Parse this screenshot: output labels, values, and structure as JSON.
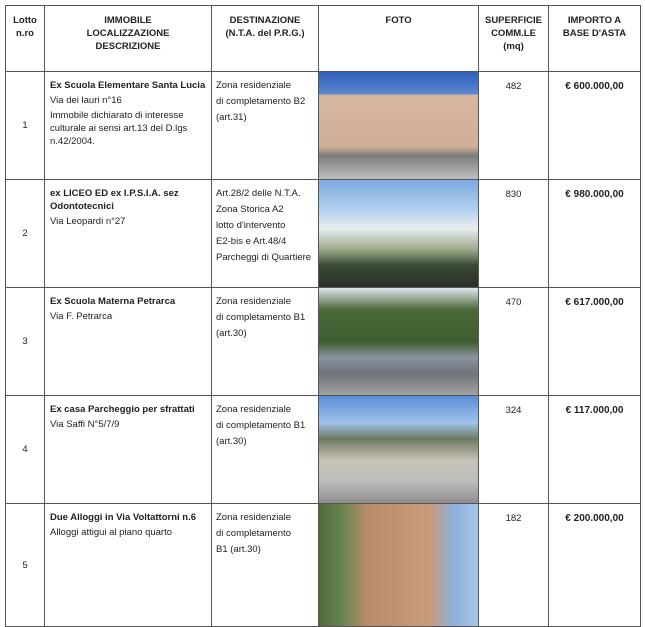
{
  "headers": {
    "lotto": [
      "Lotto",
      "n.ro"
    ],
    "immobile": [
      "IMMOBILE",
      "LOCALIZZAZIONE",
      "DESCRIZIONE"
    ],
    "destinazione": [
      "DESTINAZIONE",
      "(N.T.A. del P.R.G.)"
    ],
    "foto": "FOTO",
    "superficie": [
      "SUPERFICIE",
      "COMM.LE",
      "(mq)"
    ],
    "importo": [
      "IMPORTO A",
      "BASE D'ASTA"
    ]
  },
  "rows": [
    {
      "lotto": "1",
      "name": "Ex Scuola Elementare Santa Lucia",
      "details": [
        "Via dei lauri n°16",
        "Immobile dichiarato di interesse culturale ai sensi art.13 del D.lgs n.42/2004."
      ],
      "destinazione": [
        "Zona residenziale",
        "di completamento B2",
        "(art.31)"
      ],
      "superficie": "482",
      "importo": "€ 600.000,00"
    },
    {
      "lotto": "2",
      "name": "ex LICEO ED ex I.P.S.I.A. sez Odontotecnici",
      "details": [
        "Via Leopardi n°27"
      ],
      "destinazione": [
        "Art.28/2 delle N.T.A.",
        "Zona Storica A2",
        "lotto d'intervento",
        "E2-bis e Art.48/4",
        "Parcheggi di Quartiere"
      ],
      "superficie": "830",
      "importo": "€ 980.000,00"
    },
    {
      "lotto": "3",
      "name": "Ex Scuola Materna Petrarca",
      "details": [
        "Via F. Petrarca"
      ],
      "destinazione": [
        "Zona residenziale",
        "di completamento B1",
        "(art.30)"
      ],
      "superficie": "470",
      "importo": "€ 617.000,00"
    },
    {
      "lotto": "4",
      "name": "Ex casa Parcheggio per sfrattati",
      "details": [
        "Via Saffi N°5/7/9"
      ],
      "destinazione": [
        "Zona residenziale",
        "di completamento B1",
        "(art.30)"
      ],
      "superficie": "324",
      "importo": "€ 117.000,00"
    },
    {
      "lotto": "5",
      "name": "Due Alloggi in Via Voltattorni n.6",
      "details": [
        "Alloggi attigui al piano quarto"
      ],
      "destinazione": [
        "Zona residenziale",
        "di completamento",
        "B1 (art.30)"
      ],
      "superficie": "182",
      "importo": "€ 200.000,00"
    }
  ]
}
